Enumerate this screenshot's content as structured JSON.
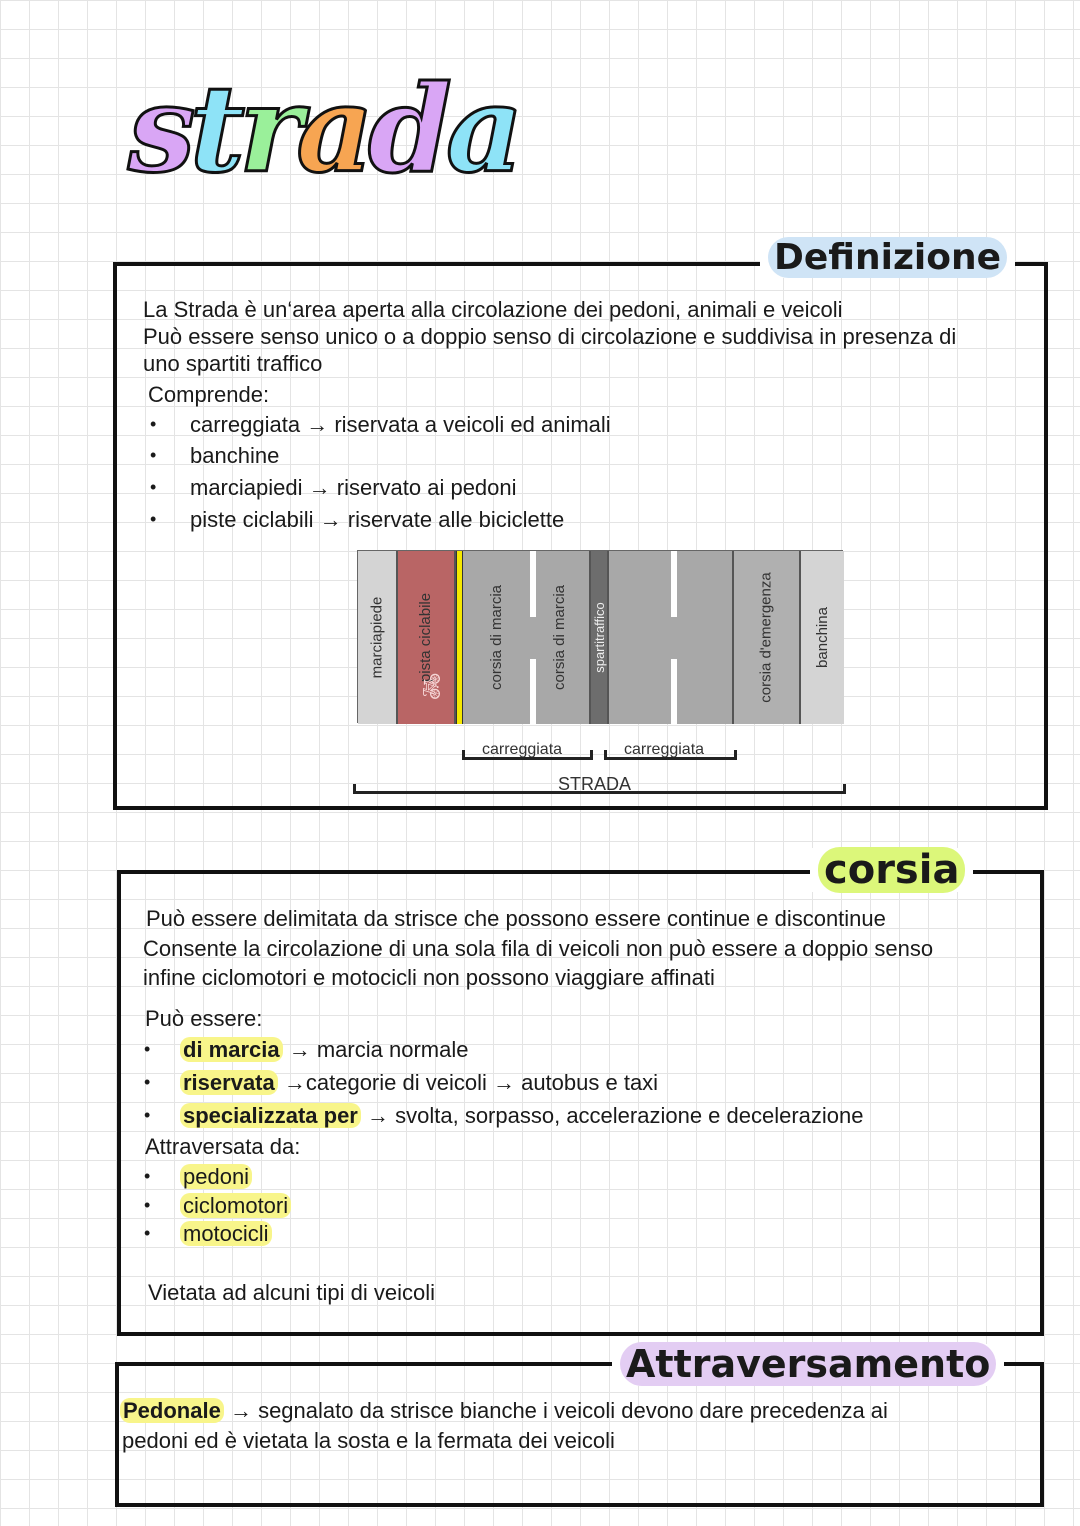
{
  "title": {
    "letters": [
      "s",
      "t",
      "r",
      "a",
      "d",
      "a"
    ],
    "colors": [
      "#d9a6f5",
      "#8ee3f7",
      "#9af09a",
      "#f7a552",
      "#d9a6f5",
      "#8ee3f7"
    ]
  },
  "definizione": {
    "heading": "Definizione",
    "highlight": "#cfe4f6",
    "lines": [
      "La Strada è un‘area aperta alla circolazione dei pedoni, animali e veicoli",
      "Può essere senso unico o a doppio senso di circolazione e suddivisa in presenza di",
      "uno spartiti traffico"
    ],
    "comprende": "Comprende:",
    "items": [
      {
        "term": "carreggiata",
        "arrow": "→",
        "desc": "riservata a veicoli ed animali"
      },
      {
        "term": "banchine",
        "arrow": "",
        "desc": ""
      },
      {
        "term": "marciapiedi",
        "arrow": "→",
        "desc": "riservato ai pedoni"
      },
      {
        "term": "piste ciclabili",
        "arrow": "→",
        "desc": "riservate alle biciclette"
      }
    ]
  },
  "diagram": {
    "columns": [
      "marciapiede",
      "pista ciclabile",
      "corsia di marcia",
      "corsia di marcia",
      "spartitraffico",
      "",
      "corsia d'emergenza",
      "banchina"
    ],
    "carreggiata_left": "carreggiata",
    "carreggiata_right": "carreggiata",
    "strada": "STRADA",
    "bike_icon": "bicycle-icon"
  },
  "corsia": {
    "heading": "corsia",
    "highlight": "#dcf77a",
    "lines": [
      "Può essere delimitata da strisce che possono essere continue e discontinue",
      "Consente la circolazione di una sola fila di veicoli non può essere a doppio senso",
      "infine ciclomotori e motocicli non possono viaggiare affinati"
    ],
    "puo_essere": "Può essere:",
    "types": [
      {
        "term": "di marcia",
        "arrow": "→",
        "desc": "marcia normale"
      },
      {
        "term": "riservata",
        "arrow": "→",
        "desc": "categorie di veicoli → autobus e taxi"
      },
      {
        "term": "specializzata per",
        "arrow": "→",
        "desc": "svolta, sorpasso, accelerazione e decelerazione"
      }
    ],
    "attraversata": "Attraversata da:",
    "crossers": [
      "pedoni",
      "ciclomotori",
      "motocicli"
    ],
    "vietata": "Vietata ad alcuni tipi di veicoli"
  },
  "attraversamento": {
    "heading": "Attraversamento",
    "highlight": "#e3cdf3",
    "term": "Pedonale",
    "arrow": "→",
    "lines": [
      "segnalato da strisce bianche i veicoli devono dare precedenza ai",
      "pedoni ed è vietata la sosta e la fermata dei veicoli"
    ]
  }
}
